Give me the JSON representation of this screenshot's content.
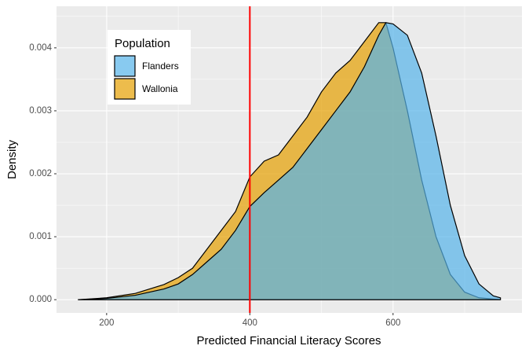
{
  "chart_data": {
    "type": "area",
    "x_label": "Predicted Financial Literacy Scores",
    "y_label": "Density",
    "legend_title": "Population",
    "legend_position": "top-left",
    "x": [
      160,
      200,
      240,
      280,
      300,
      320,
      340,
      360,
      380,
      400,
      420,
      440,
      460,
      480,
      500,
      520,
      540,
      560,
      580,
      590,
      600,
      620,
      640,
      660,
      680,
      700,
      720,
      740,
      750
    ],
    "series": [
      {
        "name": "Flanders",
        "color": "#56B4E9",
        "values": [
          0,
          2e-05,
          7e-05,
          0.00017,
          0.00025,
          0.0004,
          0.0006,
          0.0008,
          0.0011,
          0.00148,
          0.0017,
          0.0019,
          0.0021,
          0.0024,
          0.0027,
          0.003,
          0.0033,
          0.0037,
          0.0042,
          0.0044,
          0.00438,
          0.0042,
          0.0036,
          0.0026,
          0.0015,
          0.0007,
          0.00025,
          6e-05,
          3e-05
        ]
      },
      {
        "name": "Wallonia",
        "color": "#E69F00",
        "values": [
          0,
          3e-05,
          0.0001,
          0.00024,
          0.00035,
          0.0005,
          0.0008,
          0.0011,
          0.0014,
          0.00195,
          0.0022,
          0.0023,
          0.0026,
          0.0029,
          0.0033,
          0.0036,
          0.0038,
          0.0041,
          0.0044,
          0.0044,
          0.004,
          0.003,
          0.0019,
          0.001,
          0.0004,
          0.00012,
          3e-05,
          1e-05,
          0
        ]
      }
    ],
    "xlim": [
      130,
      780
    ],
    "ylim": [
      -0.00021,
      0.00466
    ],
    "xticks": [
      200,
      400,
      600
    ],
    "yticks": [
      {
        "value": 0,
        "label": "0.000"
      },
      {
        "value": 0.001,
        "label": "0.001"
      },
      {
        "value": 0.002,
        "label": "0.002"
      },
      {
        "value": 0.003,
        "label": "0.003"
      },
      {
        "value": 0.004,
        "label": "0.004"
      }
    ],
    "x_minor_ticks": [
      300,
      500,
      700
    ],
    "y_minor_ticks": [
      0.0005,
      0.0015,
      0.0025,
      0.0035,
      0.0045
    ],
    "grid": true,
    "fill_opacity": 0.7,
    "vline": {
      "x": 400,
      "color": "#ff0000"
    }
  }
}
